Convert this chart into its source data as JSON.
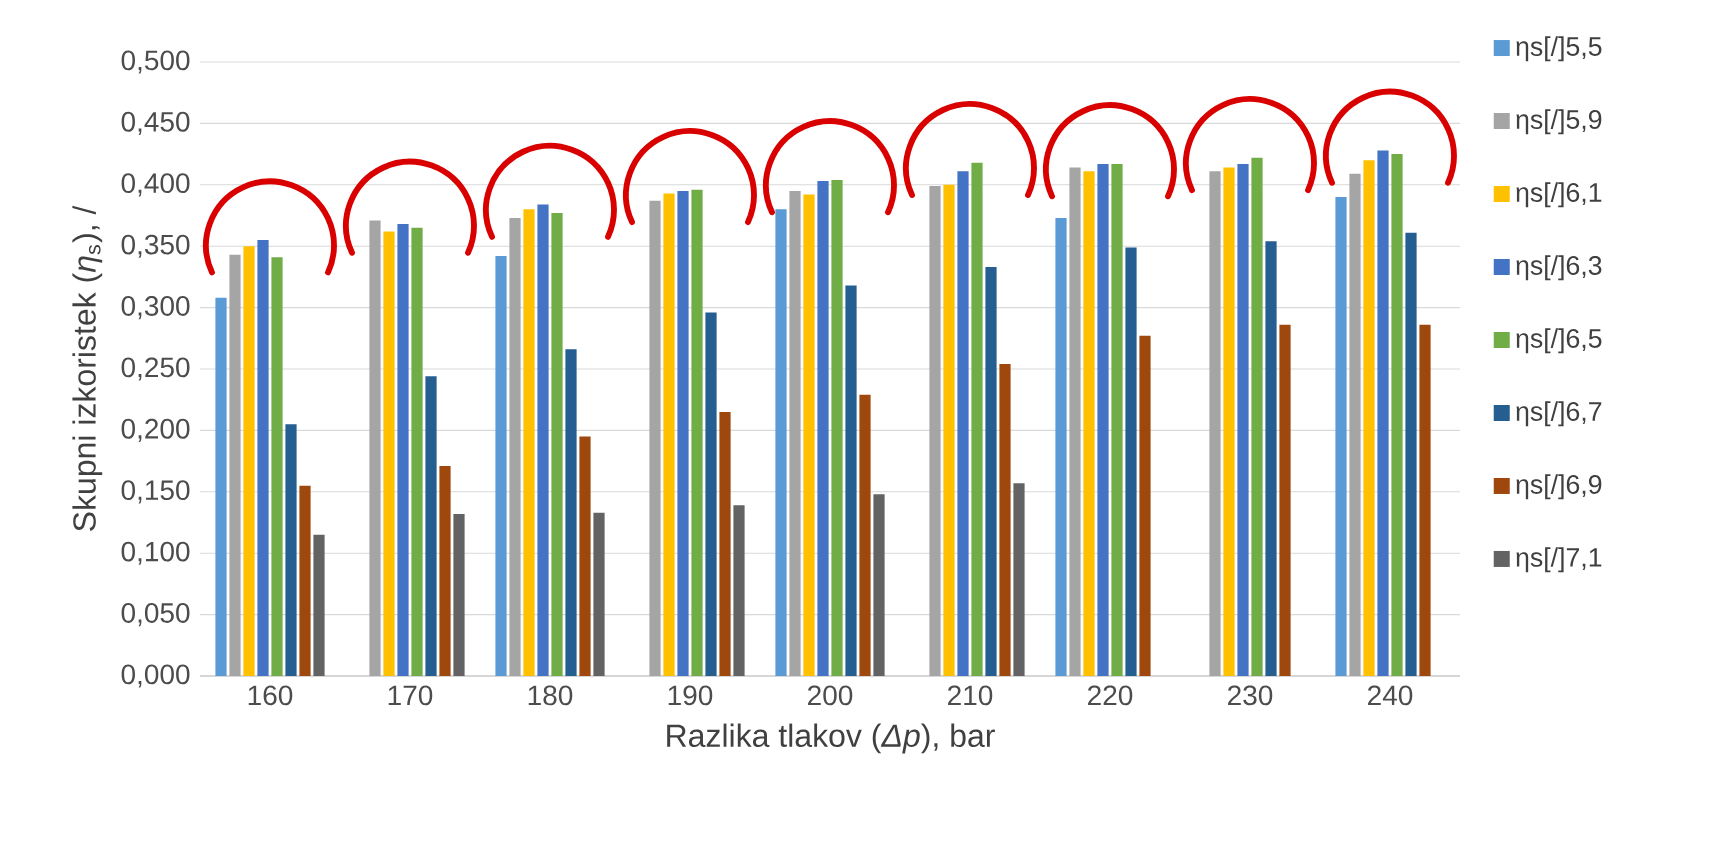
{
  "chart_data": {
    "type": "bar",
    "xlabel": "Razlika tlakov (*Δp*), bar",
    "ylabel": "Skupni izkoristek (*η*$_{s}$), /",
    "categories": [
      "160",
      "170",
      "180",
      "190",
      "200",
      "210",
      "220",
      "230",
      "240"
    ],
    "series": [
      {
        "name": "ηs[/]5,5",
        "color": "#5b9bd5",
        "values": [
          0.308,
          null,
          0.342,
          null,
          0.38,
          null,
          0.373,
          null,
          0.39
        ]
      },
      {
        "name": "ηs[/]5,9",
        "color": "#a5a5a5",
        "values": [
          0.343,
          0.371,
          0.373,
          0.387,
          0.395,
          0.399,
          0.414,
          0.411,
          0.409
        ]
      },
      {
        "name": "ηs[/]6,1",
        "color": "#ffc000",
        "values": [
          0.35,
          0.362,
          0.38,
          0.393,
          0.392,
          0.4,
          0.411,
          0.414,
          0.42
        ]
      },
      {
        "name": "ηs[/]6,3",
        "color": "#4472c4",
        "values": [
          0.355,
          0.368,
          0.384,
          0.395,
          0.403,
          0.411,
          0.417,
          0.417,
          0.428
        ]
      },
      {
        "name": "ηs[/]6,5",
        "color": "#70ad47",
        "values": [
          0.341,
          0.365,
          0.377,
          0.396,
          0.404,
          0.418,
          0.417,
          0.422,
          0.425
        ]
      },
      {
        "name": "ηs[/]6,7",
        "color": "#255e91",
        "values": [
          0.205,
          0.244,
          0.266,
          0.296,
          0.318,
          0.333,
          0.349,
          0.354,
          0.361
        ]
      },
      {
        "name": "ηs[/]6,9",
        "color": "#9e480e",
        "values": [
          0.155,
          0.171,
          0.195,
          0.215,
          0.229,
          0.254,
          0.277,
          0.286,
          0.286
        ]
      },
      {
        "name": "ηs[/]7,1",
        "color": "#636363",
        "values": [
          0.115,
          0.132,
          0.133,
          0.139,
          0.148,
          0.157,
          null,
          null,
          null
        ]
      }
    ],
    "ylim": [
      0,
      0.5
    ],
    "yticks": [
      {
        "value": 0,
        "label": "0,000"
      },
      {
        "value": 0.05,
        "label": "0,050"
      },
      {
        "value": 0.1,
        "label": "0,100"
      },
      {
        "value": 0.15,
        "label": "0,150"
      },
      {
        "value": 0.2,
        "label": "0,200"
      },
      {
        "value": 0.25,
        "label": "0,250"
      },
      {
        "value": 0.3,
        "label": "0,300"
      },
      {
        "value": 0.35,
        "label": "0,350"
      },
      {
        "value": 0.4,
        "label": "0,400"
      },
      {
        "value": 0.45,
        "label": "0,450"
      },
      {
        "value": 0.5,
        "label": "0,500"
      }
    ],
    "grid": "y",
    "legend": "right"
  }
}
